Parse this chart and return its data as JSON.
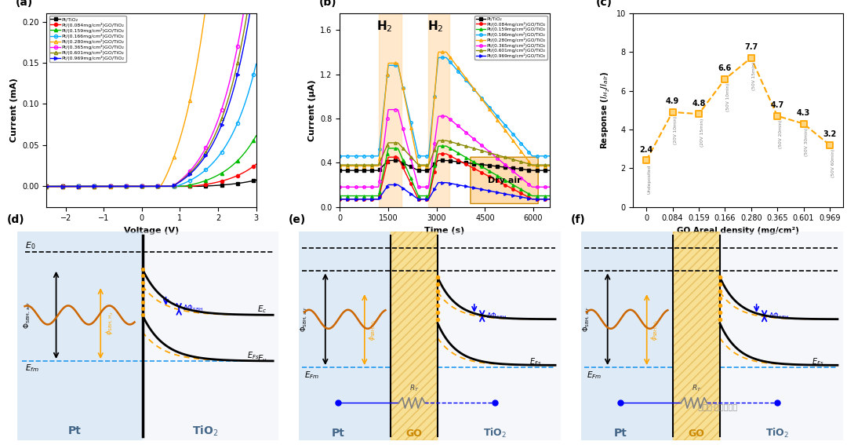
{
  "panel_labels": [
    "(a)",
    "(b)",
    "(c)",
    "(d)",
    "(e)",
    "(f)"
  ],
  "series_labels": [
    "Pt/TiO₂",
    "Pt/(0.084mg/cm²)GO/TiO₂",
    "Pt/(0.159mg/cm²)GO/TiO₂",
    "Pt/(0.166mg/cm²)GO/TiO₂",
    "Pt/(0.280mg/cm²)GO/TiO₂",
    "Pt/(0.365mg/cm²)GO/TiO₂",
    "Pt/(0.601mg/cm²)GO/TiO₂",
    "Pt/(0.969mg/cm²)GO/TiO₂"
  ],
  "colors": [
    "black",
    "red",
    "#00bb00",
    "#00aaff",
    "orange",
    "magenta",
    "#888800",
    "blue"
  ],
  "markers_a": [
    "s",
    "o",
    "^",
    "o",
    "^",
    "o",
    "^",
    ">"
  ],
  "marker_fill_a": [
    true,
    true,
    true,
    false,
    false,
    false,
    false,
    false
  ],
  "iv_thresholds": [
    1.5,
    1.3,
    1.1,
    0.9,
    0.5,
    0.8,
    0.8,
    0.8
  ],
  "iv_scales": [
    0.0015,
    0.004,
    0.007,
    0.013,
    0.07,
    0.025,
    0.022,
    0.02
  ],
  "panel_c": {
    "x_labels": [
      "0",
      "0.084",
      "0.159",
      "0.166",
      "0.280",
      "0.365",
      "0.601",
      "0.969"
    ],
    "y_values": [
      2.4,
      4.9,
      4.8,
      6.6,
      7.7,
      4.7,
      4.3,
      3.2
    ],
    "annotations": [
      "Undeposited",
      "(20V 10min)",
      "(20V 15min)",
      "(50V 10min)",
      "(50V 15min)",
      "(50V 20min)",
      "(50V 30min)",
      "(50V 60min)"
    ],
    "xlabel": "GO Areal density (mg/cm²)",
    "ylabel": "Response ($I_{H_2}$/$I_{air}$)",
    "ylim": [
      0,
      10
    ],
    "color": "#FFA500"
  }
}
